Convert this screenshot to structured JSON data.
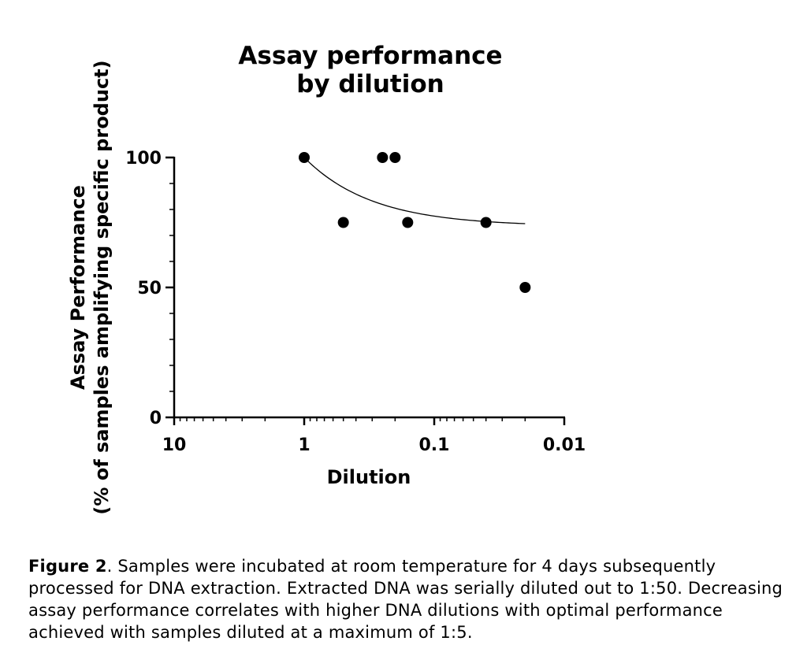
{
  "chart_data": {
    "type": "scatter",
    "title_lines": [
      "Assay performance",
      "by dilution"
    ],
    "xlabel": "Dilution",
    "ylabel_lines": [
      "Assay Performance",
      "(% of samples amplifying specific product)"
    ],
    "x_scale": "log",
    "x_reversed": true,
    "xlim": [
      10,
      0.01
    ],
    "ylim": [
      0,
      100
    ],
    "x_ticks": [
      10,
      1,
      0.1,
      0.01
    ],
    "x_tick_labels": [
      "10",
      "1",
      "0.1",
      "0.01"
    ],
    "y_ticks": [
      0,
      50,
      100
    ],
    "y_tick_labels": [
      "0",
      "50",
      "100"
    ],
    "points": [
      {
        "x": 1,
        "y": 100
      },
      {
        "x": 0.5,
        "y": 75
      },
      {
        "x": 0.25,
        "y": 100
      },
      {
        "x": 0.2,
        "y": 100
      },
      {
        "x": 0.16,
        "y": 75
      },
      {
        "x": 0.04,
        "y": 75
      },
      {
        "x": 0.02,
        "y": 50
      }
    ],
    "fit_curve": {
      "type": "exponential decay",
      "plateau": 73.5,
      "x_range": [
        1,
        0.02
      ],
      "samples": [
        {
          "x": 1,
          "y": 100
        },
        {
          "x": 0.7,
          "y": 95
        },
        {
          "x": 0.5,
          "y": 90
        },
        {
          "x": 0.3,
          "y": 84
        },
        {
          "x": 0.2,
          "y": 80.5
        },
        {
          "x": 0.12,
          "y": 77.5
        },
        {
          "x": 0.07,
          "y": 75.5
        },
        {
          "x": 0.04,
          "y": 74.3
        },
        {
          "x": 0.02,
          "y": 73.7
        }
      ]
    }
  },
  "caption": {
    "label": "Figure 2",
    "text": ".  Samples were incubated at room temperature for 4 days subsequently processed for DNA extraction.  Extracted DNA was serially diluted out to 1:50.  Decreasing assay performance correlates with higher DNA dilutions with optimal performance achieved with samples diluted at a maximum of 1:5."
  }
}
